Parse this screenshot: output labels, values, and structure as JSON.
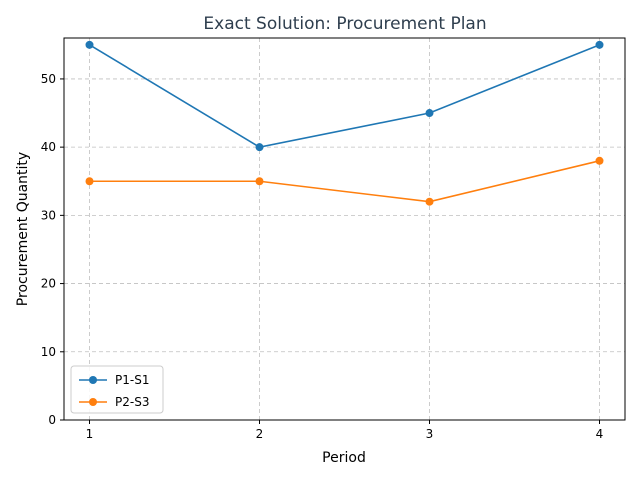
{
  "chart_data": {
    "type": "line",
    "title": "Exact Solution: Procurement Plan",
    "xlabel": "Period",
    "ylabel": "Procurement Quantity",
    "x": [
      1,
      2,
      3,
      4
    ],
    "xticks": [
      "1",
      "2",
      "3",
      "4"
    ],
    "yticks": [
      "0",
      "10",
      "20",
      "30",
      "40",
      "50"
    ],
    "xlim": [
      0.85,
      4.15
    ],
    "ylim": [
      0,
      56
    ],
    "grid": true,
    "legend_position": "lower-left",
    "series": [
      {
        "name": "P1-S1",
        "color": "#1f77b4",
        "values": [
          55,
          40,
          45,
          55
        ]
      },
      {
        "name": "P2-S3",
        "color": "#ff7f0e",
        "values": [
          35,
          35,
          32,
          38
        ]
      }
    ]
  }
}
